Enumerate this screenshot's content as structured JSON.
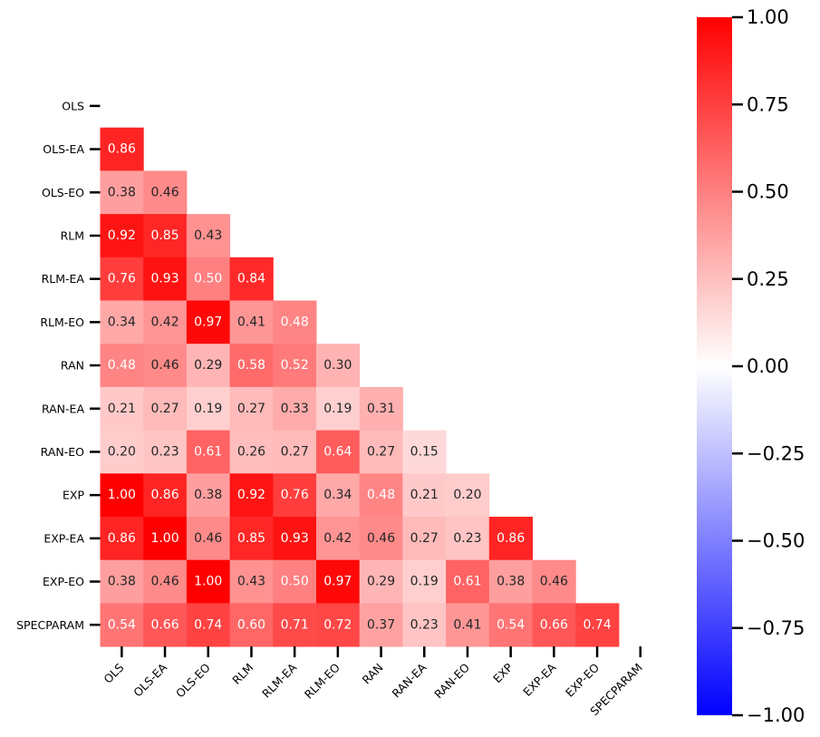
{
  "chart_data": {
    "type": "heatmap",
    "title": "",
    "xlabel": "",
    "ylabel": "",
    "mask": "upper-triangle-including-diagonal",
    "labels": [
      "OLS",
      "OLS-EA",
      "OLS-EO",
      "RLM",
      "RLM-EA",
      "RLM-EO",
      "RAN",
      "RAN-EA",
      "RAN-EO",
      "EXP",
      "EXP-EA",
      "EXP-EO",
      "SPECPARAM"
    ],
    "lower_triangle_values": [
      [],
      [
        0.86
      ],
      [
        0.38,
        0.46
      ],
      [
        0.92,
        0.85,
        0.43
      ],
      [
        0.76,
        0.93,
        0.5,
        0.84
      ],
      [
        0.34,
        0.42,
        0.97,
        0.41,
        0.48
      ],
      [
        0.48,
        0.46,
        0.29,
        0.58,
        0.52,
        0.3
      ],
      [
        0.21,
        0.27,
        0.19,
        0.27,
        0.33,
        0.19,
        0.31
      ],
      [
        0.2,
        0.23,
        0.61,
        0.26,
        0.27,
        0.64,
        0.27,
        0.15
      ],
      [
        1.0,
        0.86,
        0.38,
        0.92,
        0.76,
        0.34,
        0.48,
        0.21,
        0.2
      ],
      [
        0.86,
        1.0,
        0.46,
        0.85,
        0.93,
        0.42,
        0.46,
        0.27,
        0.23,
        0.86
      ],
      [
        0.38,
        0.46,
        1.0,
        0.43,
        0.5,
        0.97,
        0.29,
        0.19,
        0.61,
        0.38,
        0.46
      ],
      [
        0.54,
        0.66,
        0.74,
        0.6,
        0.71,
        0.72,
        0.37,
        0.23,
        0.41,
        0.54,
        0.66,
        0.74
      ]
    ],
    "annotation_format": "0.00",
    "colormap": "bwr",
    "colormap_colors": {
      "min": "#0000ff",
      "mid": "#ffffff",
      "max": "#ff0000"
    },
    "colorbar": {
      "range": [
        -1,
        1
      ],
      "ticks": [
        1.0,
        0.75,
        0.5,
        0.25,
        0.0,
        -0.25,
        -0.5,
        -0.75,
        -1.0
      ],
      "tick_labels": [
        "1.00",
        "0.75",
        "0.50",
        "0.25",
        "0.00",
        "−0.25",
        "−0.50",
        "−0.75",
        "−1.00"
      ],
      "placement": "right"
    }
  }
}
